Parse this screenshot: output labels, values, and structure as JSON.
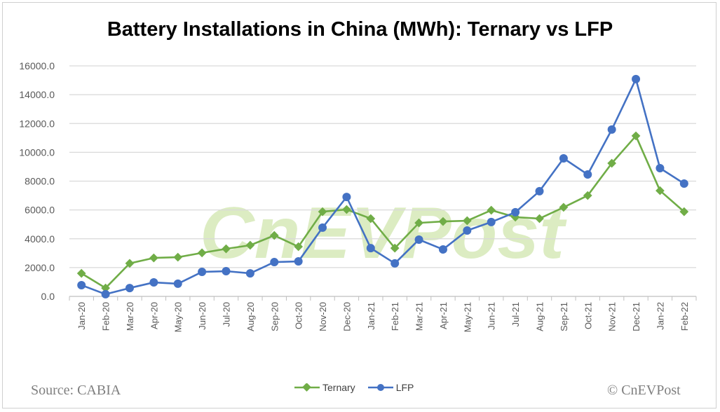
{
  "chart_data": {
    "type": "line",
    "title": "Battery Installations in China (MWh): Ternary vs LFP",
    "xlabel": "",
    "ylabel": "",
    "ylim": [
      0,
      16000
    ],
    "yticks": [
      "0.0",
      "2000.0",
      "4000.0",
      "6000.0",
      "8000.0",
      "10000.0",
      "12000.0",
      "14000.0",
      "16000.0"
    ],
    "grid": true,
    "legend": "bottom",
    "categories": [
      "Jan-20",
      "Feb-20",
      "Mar-20",
      "Apr-20",
      "May-20",
      "Jun-20",
      "Jul-20",
      "Aug-20",
      "Sep-20",
      "Oct-20",
      "Nov-20",
      "Dec-20",
      "Jan-21",
      "Feb-21",
      "Mar-21",
      "Apr-21",
      "May-21",
      "Jun-21",
      "Jul-21",
      "Aug-21",
      "Sep-21",
      "Oct-21",
      "Nov-21",
      "Dec-21",
      "Jan-22",
      "Feb-22"
    ],
    "series": [
      {
        "name": "Ternary",
        "color": "#70ad47",
        "marker": "diamond",
        "values": [
          1600,
          580,
          2290,
          2670,
          2720,
          3020,
          3300,
          3550,
          4230,
          3450,
          5880,
          6030,
          5400,
          3350,
          5100,
          5200,
          5250,
          5980,
          5500,
          5400,
          6180,
          7000,
          9240,
          11140,
          7340,
          5880
        ]
      },
      {
        "name": "LFP",
        "color": "#4472c4",
        "marker": "circle",
        "values": [
          780,
          150,
          580,
          970,
          880,
          1700,
          1750,
          1600,
          2380,
          2430,
          4770,
          6900,
          3350,
          2290,
          3940,
          3260,
          4570,
          5160,
          5840,
          7300,
          9580,
          8460,
          11580,
          15080,
          8900,
          7830
        ]
      }
    ]
  },
  "footer": {
    "source": "Source: CABIA",
    "copyright": "© CnEVPost"
  },
  "watermark": "CnEVPost"
}
